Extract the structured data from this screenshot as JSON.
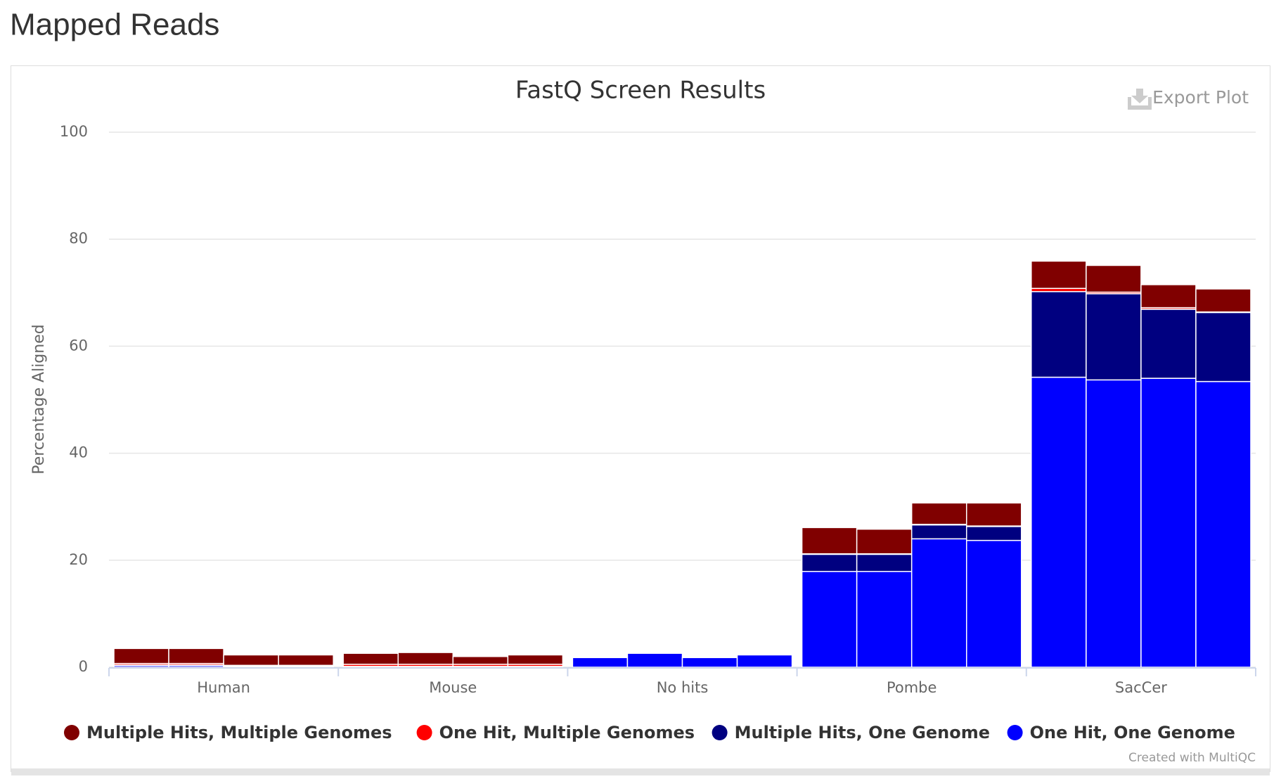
{
  "heading": "Mapped Reads",
  "export_label": "Export Plot",
  "credit": "Created with MultiQC",
  "chart_data": {
    "type": "stacked-bar",
    "title": "FastQ Screen Results",
    "ylabel": "Percentage Aligned",
    "categories": [
      "Human",
      "Mouse",
      "No hits",
      "Pombe",
      "SacCer"
    ],
    "series": [
      {
        "name": "Multiple Hits, Multiple Genomes",
        "color": "#800000",
        "values": [
          [
            2.8,
            2.8,
            1.95,
            1.95
          ],
          [
            2.05,
            2.2,
            1.45,
            1.75
          ],
          [
            0,
            0,
            0,
            0
          ],
          [
            4.9,
            4.6,
            4.0,
            4.3
          ],
          [
            5.1,
            5.0,
            4.3,
            4.3
          ]
        ]
      },
      {
        "name": "One Hit, Multiple Genomes",
        "color": "#ff0000",
        "values": [
          [
            0.3,
            0.3,
            0.2,
            0.2
          ],
          [
            0.4,
            0.4,
            0.4,
            0.4
          ],
          [
            0,
            0,
            0,
            0
          ],
          [
            0.1,
            0.1,
            0.1,
            0.1
          ],
          [
            0.6,
            0.3,
            0.3,
            0.1
          ]
        ]
      },
      {
        "name": "Multiple Hits, One Genome",
        "color": "#000080",
        "values": [
          [
            0.1,
            0.1,
            0.05,
            0.05
          ],
          [
            0.05,
            0.05,
            0.05,
            0.05
          ],
          [
            0,
            0,
            0,
            0
          ],
          [
            3.2,
            3.2,
            2.6,
            2.6
          ],
          [
            16.0,
            16.1,
            12.9,
            12.9
          ]
        ]
      },
      {
        "name": "One Hit, One Genome",
        "color": "#0000ff",
        "values": [
          [
            0.3,
            0.3,
            0.1,
            0.1
          ],
          [
            0.1,
            0.1,
            0.1,
            0.1
          ],
          [
            1.8,
            2.6,
            1.8,
            2.3
          ],
          [
            17.9,
            17.9,
            24.0,
            23.7
          ],
          [
            54.2,
            53.7,
            54.0,
            53.4
          ]
        ]
      }
    ],
    "ylim": [
      0,
      100
    ],
    "yticks": [
      0,
      20,
      40,
      60,
      80,
      100
    ],
    "grid": true,
    "legend": "bottom"
  }
}
